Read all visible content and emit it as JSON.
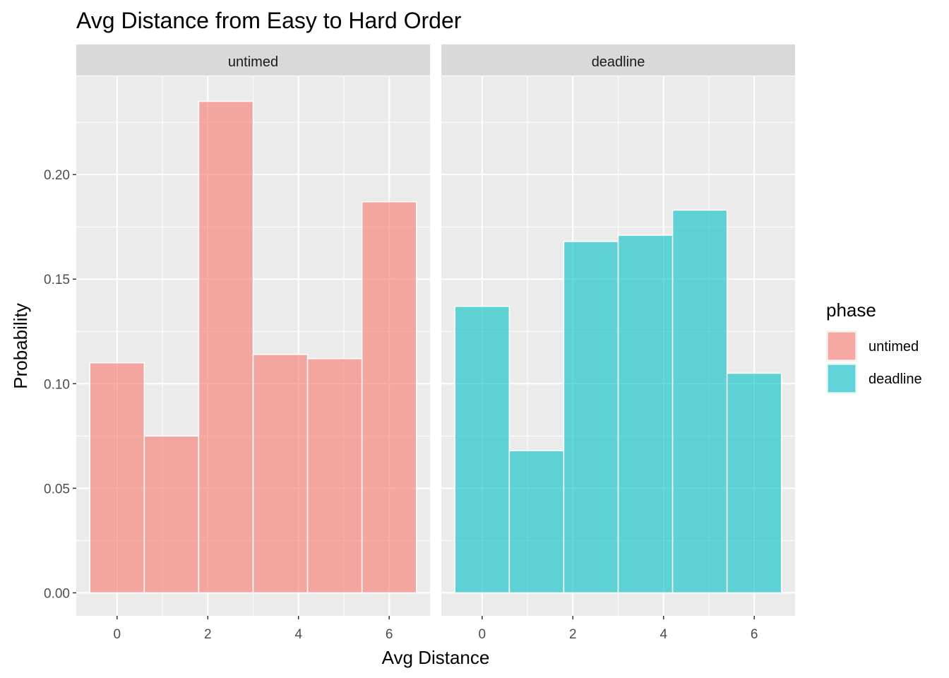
{
  "chart_data": {
    "type": "bar",
    "title": "Avg Distance from Easy to Hard Order",
    "xlabel": "Avg Distance",
    "ylabel": "Probability",
    "x_ticks": [
      "0",
      "2",
      "4",
      "6"
    ],
    "y_ticks": [
      "0.00",
      "0.05",
      "0.10",
      "0.15",
      "0.20"
    ],
    "xlim": [
      -0.9,
      6.9
    ],
    "ylim": [
      -0.011,
      0.247
    ],
    "grid": true,
    "legend": {
      "title": "phase",
      "position": "right",
      "entries": [
        {
          "label": "untimed",
          "color": "#F8766D"
        },
        {
          "label": "deadline",
          "color": "#00BFC4"
        }
      ]
    },
    "bin_width": 1.2,
    "panels": [
      {
        "strip": "untimed",
        "series": "untimed",
        "color": "#F8766D",
        "bins": [
          {
            "x": 0.0,
            "value": 0.11
          },
          {
            "x": 1.2,
            "value": 0.075
          },
          {
            "x": 2.4,
            "value": 0.235
          },
          {
            "x": 3.6,
            "value": 0.114
          },
          {
            "x": 4.8,
            "value": 0.112
          },
          {
            "x": 6.0,
            "value": 0.187
          }
        ]
      },
      {
        "strip": "deadline",
        "series": "deadline",
        "color": "#00BFC4",
        "bins": [
          {
            "x": 0.0,
            "value": 0.137
          },
          {
            "x": 1.2,
            "value": 0.068
          },
          {
            "x": 2.4,
            "value": 0.168
          },
          {
            "x": 3.6,
            "value": 0.171
          },
          {
            "x": 4.8,
            "value": 0.183
          },
          {
            "x": 6.0,
            "value": 0.105
          }
        ]
      }
    ]
  }
}
